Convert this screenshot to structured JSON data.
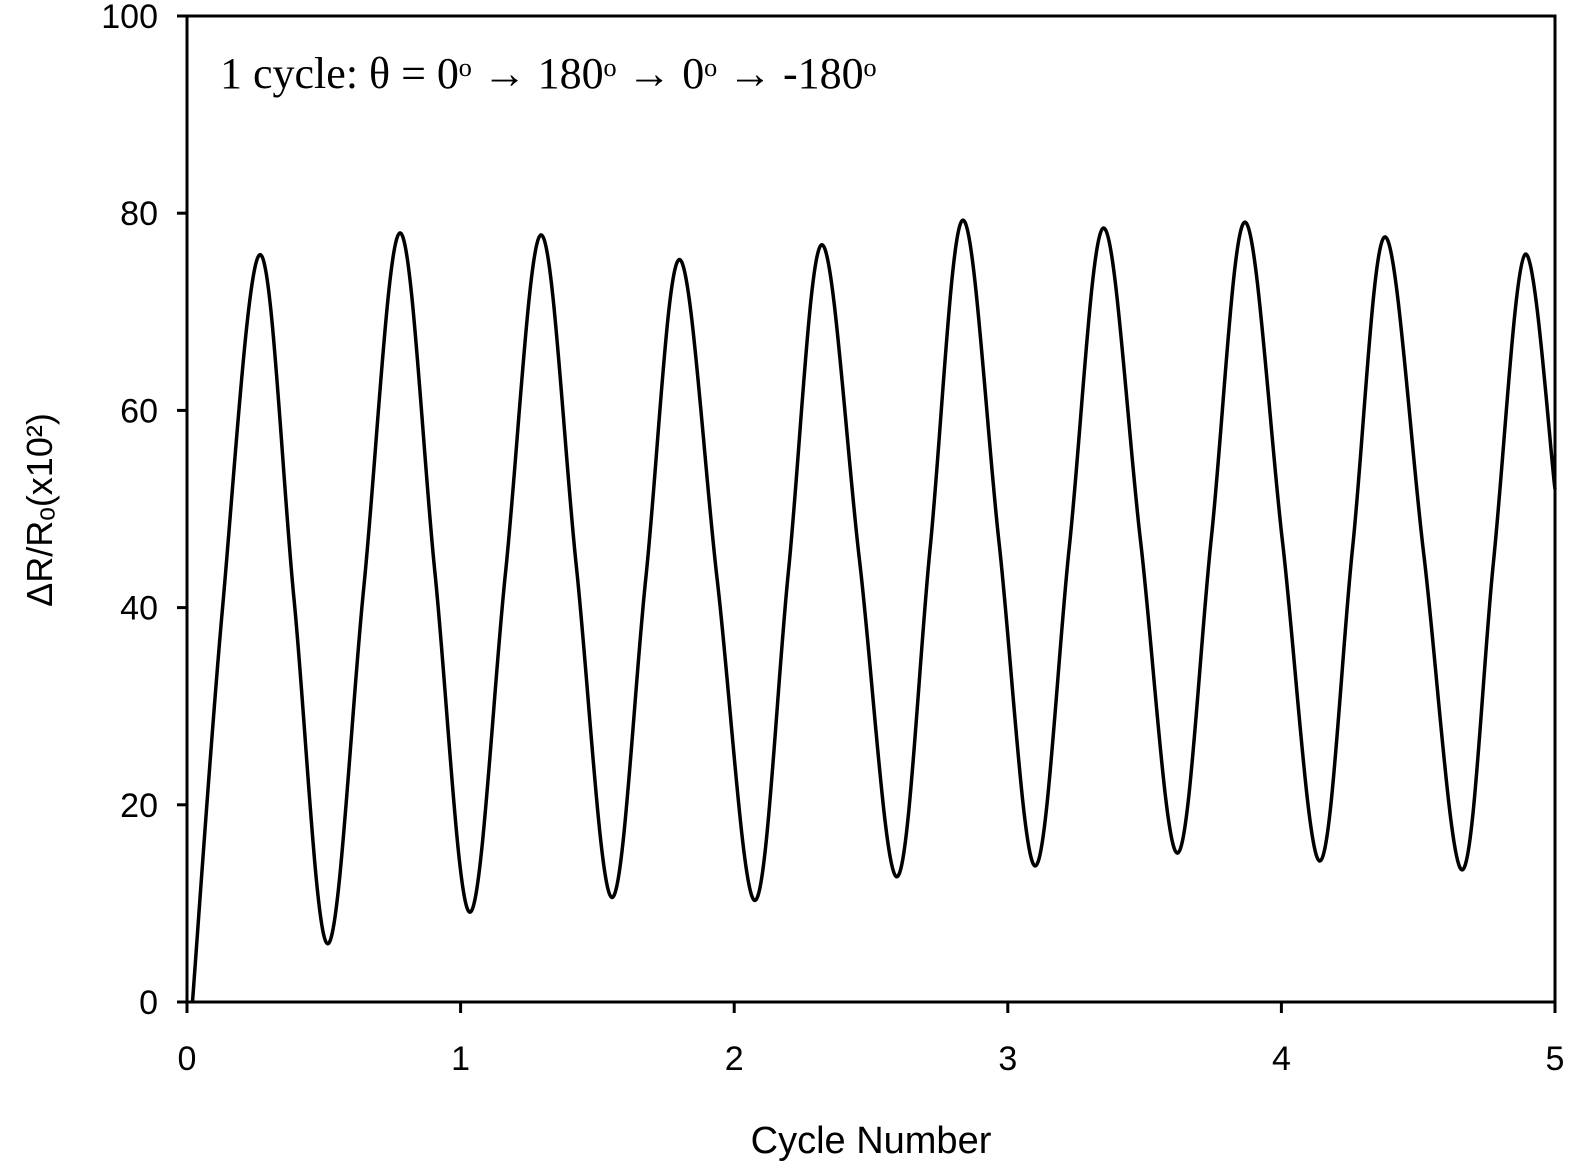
{
  "chart_data": {
    "type": "line",
    "annotation": "1 cycle: θ = 0ᵒ → 180ᵒ → 0ᵒ → -180ᵒ",
    "x_label": "Cycle Number",
    "y_label": "ΔR/Rₒ(x10²)",
    "xlim": [
      0,
      5
    ],
    "xticks": [
      0,
      1,
      2,
      3,
      4,
      5
    ],
    "ylim": [
      0,
      100
    ],
    "yticks": [
      0,
      20,
      40,
      60,
      80,
      100
    ],
    "series": [
      {
        "color": "#000000",
        "x": [
          0.02,
          0.13,
          0.267,
          0.391,
          0.515,
          0.646,
          0.778,
          0.906,
          1.034,
          1.164,
          1.294,
          1.423,
          1.553,
          1.677,
          1.8,
          1.938,
          2.076,
          2.198,
          2.32,
          2.458,
          2.595,
          2.716,
          2.836,
          2.968,
          3.1,
          3.225,
          3.35,
          3.485,
          3.62,
          3.744,
          3.867,
          4.004,
          4.14,
          4.26,
          4.379,
          4.52,
          4.66,
          4.775,
          4.89,
          5.0
        ],
        "values": [
          0,
          40,
          75.8,
          40.9,
          5.9,
          42,
          78,
          43.6,
          9.1,
          43.5,
          77.8,
          44.2,
          10.6,
          43,
          75.3,
          42.8,
          10.3,
          43.6,
          76.8,
          44.8,
          12.7,
          46,
          79.3,
          46.6,
          13.8,
          46.2,
          78.5,
          46.8,
          15.1,
          47.1,
          79.1,
          46.7,
          14.3,
          46,
          77.6,
          45.5,
          13.4,
          44.6,
          75.8,
          52
        ]
      }
    ]
  }
}
